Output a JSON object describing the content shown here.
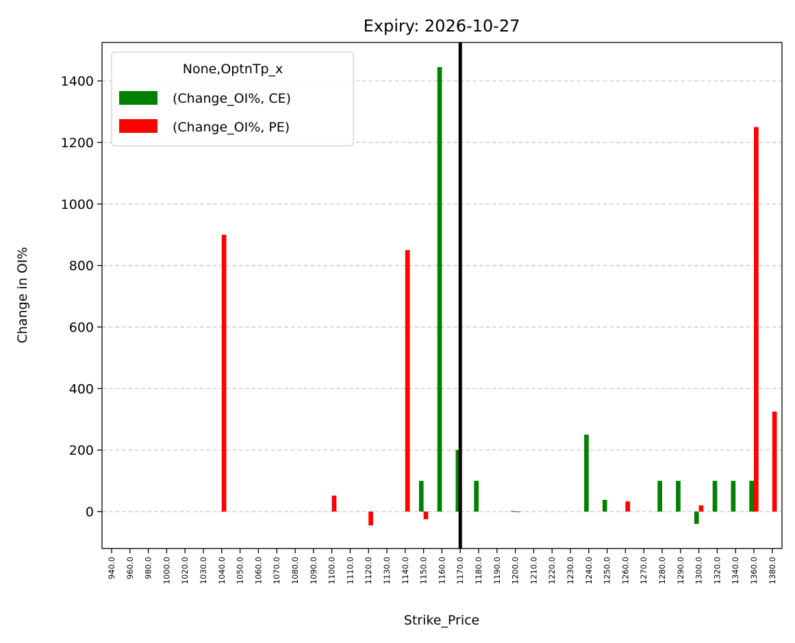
{
  "chart_data": {
    "type": "bar",
    "title": "Expiry: 2026-10-27",
    "xlabel": "Strike_Price",
    "ylabel": "Change in OI%",
    "ylim": [
      -120,
      1525
    ],
    "yticks": [
      0,
      200,
      400,
      600,
      800,
      1000,
      1200,
      1400
    ],
    "grid": "horizontal dashed",
    "legend": {
      "position": "top-left",
      "title": "None,OptnTp_x",
      "entries": [
        "(Change_OI%, CE)",
        "(Change_OI%, PE)"
      ]
    },
    "categories": [
      "940.0",
      "960.0",
      "980.0",
      "1000.0",
      "1020.0",
      "1030.0",
      "1040.0",
      "1050.0",
      "1060.0",
      "1070.0",
      "1080.0",
      "1090.0",
      "1100.0",
      "1110.0",
      "1120.0",
      "1130.0",
      "1140.0",
      "1150.0",
      "1160.0",
      "1170.0",
      "1180.0",
      "1190.0",
      "1200.0",
      "1210.0",
      "1220.0",
      "1230.0",
      "1240.0",
      "1250.0",
      "1260.0",
      "1270.0",
      "1280.0",
      "1290.0",
      "1300.0",
      "1320.0",
      "1340.0",
      "1360.0",
      "1380.0"
    ],
    "series": [
      {
        "name": "(Change_OI%, CE)",
        "color": "#008000",
        "values": [
          0,
          0,
          0,
          0,
          0,
          0,
          0,
          0,
          0,
          0,
          0,
          0,
          0,
          0,
          0,
          0,
          0,
          100,
          1445,
          200,
          100,
          0,
          2,
          0,
          0,
          0,
          250,
          38,
          0,
          0,
          100,
          100,
          -40,
          100,
          100,
          100,
          0
        ]
      },
      {
        "name": "(Change_OI%, PE)",
        "color": "#ff0000",
        "values": [
          0,
          0,
          0,
          0,
          0,
          0,
          900,
          0,
          0,
          0,
          0,
          0,
          52,
          0,
          -45,
          0,
          850,
          -25,
          0,
          0,
          0,
          0,
          -2,
          0,
          0,
          0,
          0,
          0,
          33,
          0,
          0,
          0,
          20,
          0,
          0,
          1250,
          325
        ]
      }
    ],
    "reference_line": {
      "category": "1170.0",
      "color": "#000000"
    }
  }
}
